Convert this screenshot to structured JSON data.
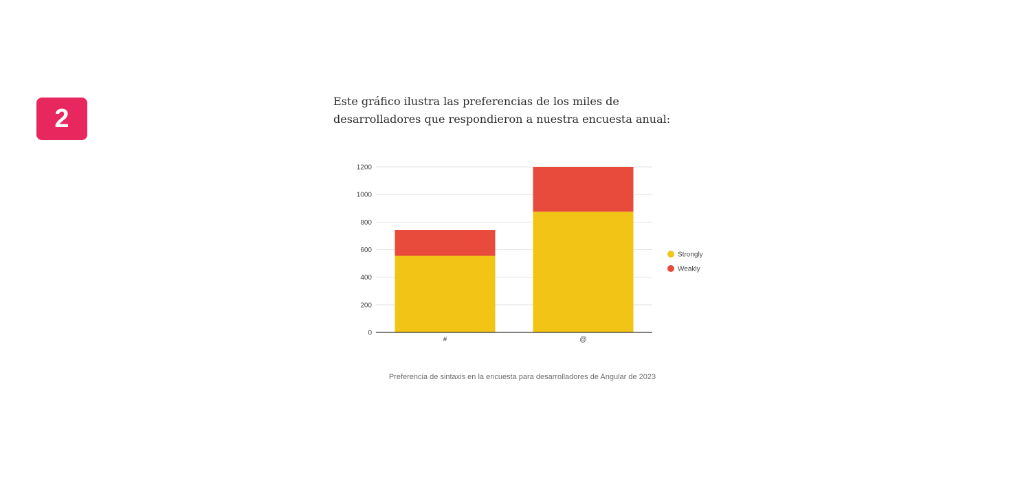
{
  "badge": {
    "number": "2",
    "color": "#e8275f"
  },
  "intro_text": "Este gráfico ilustra las preferencias de los miles de desarrolladores que respondieron a nuestra encuesta anual:",
  "caption": "Preferencia de sintaxis en la encuesta para desarrolladores de Angular de 2023",
  "chart_data": {
    "type": "bar",
    "stacked": true,
    "categories": [
      "#",
      "@"
    ],
    "series": [
      {
        "name": "Strongly",
        "color": "#f1c415",
        "values": [
          555,
          875
        ]
      },
      {
        "name": "Weakly",
        "color": "#e84b3c",
        "values": [
          187,
          325
        ]
      }
    ],
    "ylim": [
      0,
      1200
    ],
    "yticks": [
      0,
      200,
      400,
      600,
      800,
      1000,
      1200
    ],
    "grid": true,
    "legend_position": "right",
    "title": "",
    "xlabel": "",
    "ylabel": ""
  }
}
